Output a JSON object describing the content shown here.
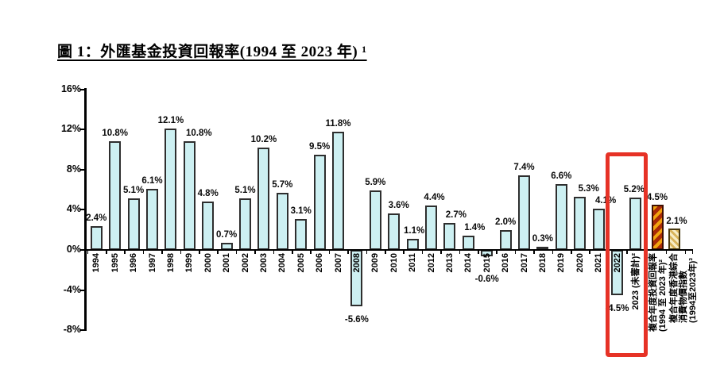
{
  "title": "圖 1：外匯基金投資回報率(1994 至 2023 年) ¹",
  "chart_data": {
    "type": "bar",
    "title": "圖 1：外匯基金投資回報率(1994 至 2023 年) ¹",
    "xlabel": "",
    "ylabel": "",
    "ylim": [
      -8,
      16
    ],
    "grid": false,
    "legend": false,
    "yticks": [
      16,
      12,
      8,
      4,
      0,
      -4,
      -8
    ],
    "ytick_labels": [
      "16%",
      "12%",
      "8%",
      "4%",
      "0%",
      "-4%",
      "-8%"
    ],
    "bar_fill_color": "#cdf0f2",
    "bar_border_color": "#2e2e2e",
    "categories": [
      "1994",
      "1995",
      "1996",
      "1997",
      "1998",
      "1999",
      "2000",
      "2001",
      "2002",
      "2003",
      "2004",
      "2005",
      "2006",
      "2007",
      "2008",
      "2009",
      "2010",
      "2011",
      "2012",
      "2013",
      "2014",
      "2015",
      "2016",
      "2017",
      "2018",
      "2019",
      "2020",
      "2021",
      "2022",
      "2023 (未審計)²"
    ],
    "values": [
      2.4,
      10.8,
      5.1,
      6.1,
      12.1,
      10.8,
      4.8,
      0.7,
      5.1,
      10.2,
      5.7,
      3.1,
      9.5,
      11.8,
      -5.6,
      5.9,
      3.6,
      1.1,
      4.4,
      2.7,
      1.4,
      -0.6,
      2.0,
      7.4,
      0.3,
      6.6,
      5.3,
      4.1,
      -4.5,
      5.2
    ],
    "value_labels": [
      "2.4%",
      "10.8%",
      "5.1%",
      "6.1%",
      "12.1%",
      "10.8%",
      "4.8%",
      "0.7%",
      "5.1%",
      "10.2%",
      "5.7%",
      "3.1%",
      "9.5%",
      "11.8%",
      "-5.6%",
      "5.9%",
      "3.6%",
      "1.1%",
      "4.4%",
      "2.7%",
      "1.4%",
      "-0.6%",
      "2.0%",
      "7.4%",
      "0.3%",
      "6.6%",
      "5.3%",
      "4.1%",
      "-4.5%",
      "5.2%"
    ],
    "summary_bars": [
      {
        "label_lines": [
          "複合年度投資回報率",
          "(1994 至 2023 年)²"
        ],
        "value": 4.5,
        "value_label": "4.5%",
        "style": "orange-red-diagonal-stripes"
      },
      {
        "label_lines": [
          "複合年度香港綜合",
          "消費物價指數",
          "(1994至2023年)³"
        ],
        "value": 2.1,
        "value_label": "2.1%",
        "style": "yellow-tan-diagonal-stripes"
      }
    ],
    "highlight_box": {
      "around": [
        "2022",
        "2023 (未審計)²"
      ],
      "color": "#e63226"
    }
  }
}
